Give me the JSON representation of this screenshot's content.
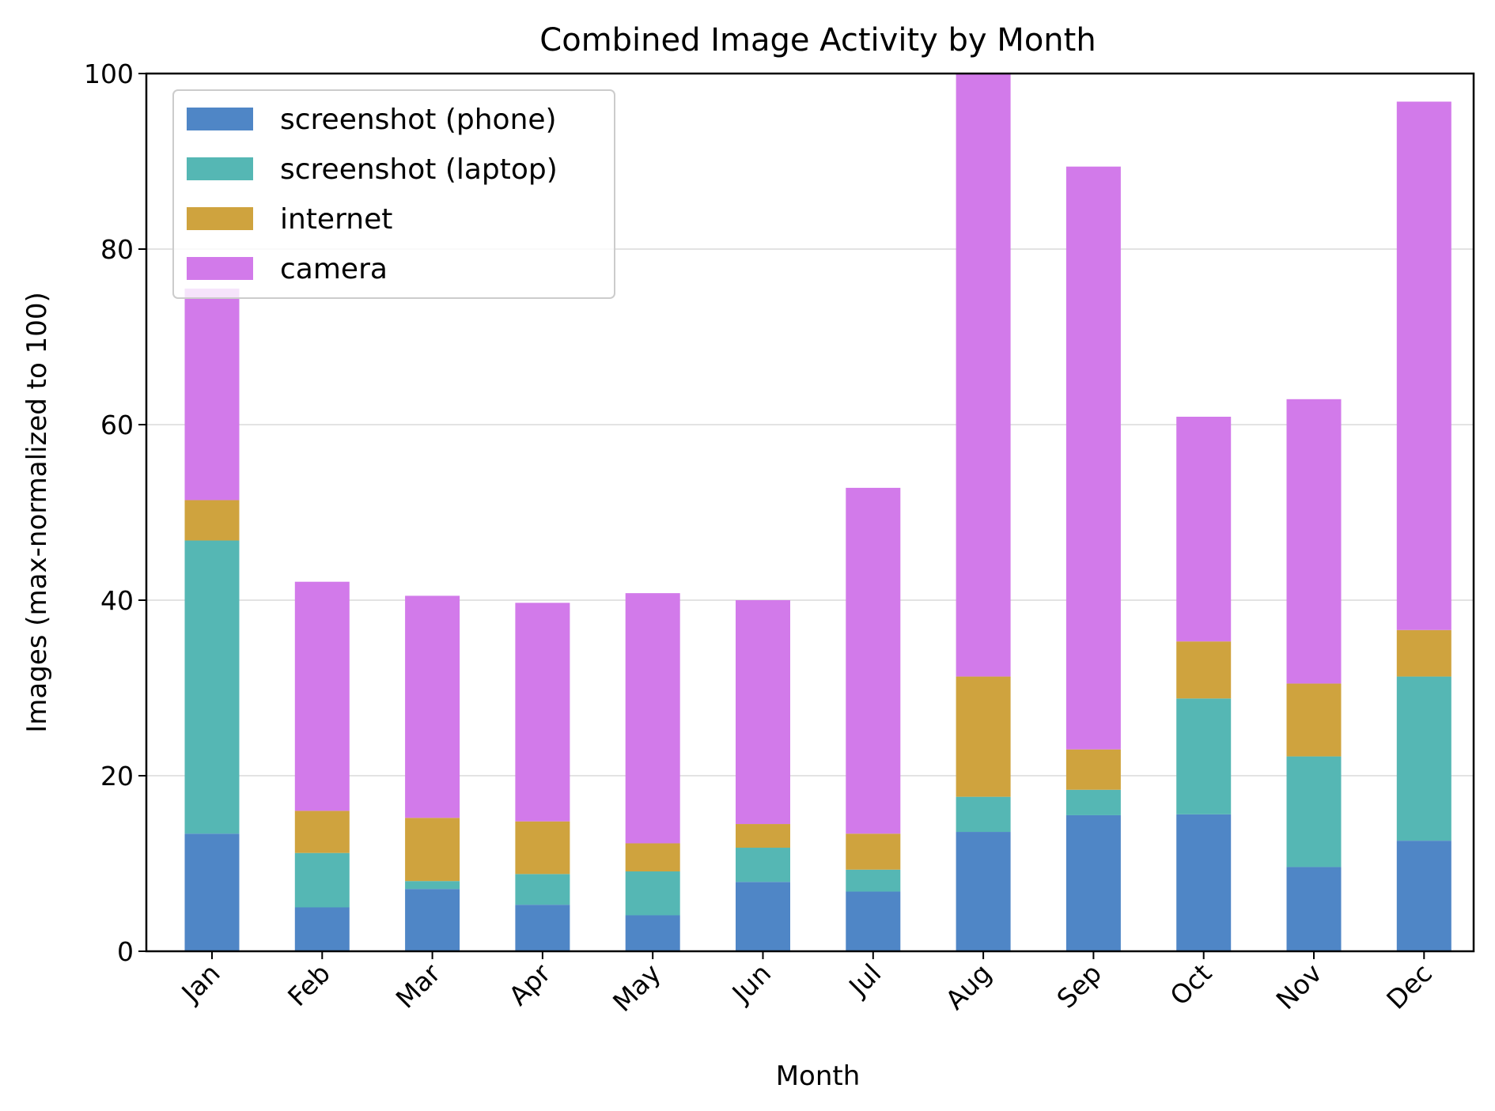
{
  "chart_data": {
    "type": "bar",
    "stacked": true,
    "title": "Combined Image Activity by Month",
    "xlabel": "Month",
    "ylabel": "Images (max-normalized to 100)",
    "ylim": [
      0,
      100
    ],
    "yticks": [
      "0",
      "20",
      "40",
      "60",
      "80",
      "100"
    ],
    "grid": "horizontal",
    "legend_position": "top-left",
    "categories": [
      "Jan",
      "Feb",
      "Mar",
      "Apr",
      "May",
      "Jun",
      "Jul",
      "Aug",
      "Sep",
      "Oct",
      "Nov",
      "Dec"
    ],
    "series": [
      {
        "name": "screenshot (phone)",
        "color": "#4f86c6",
        "values": [
          13.4,
          5.0,
          7.1,
          5.3,
          4.1,
          7.9,
          6.8,
          13.6,
          15.5,
          15.6,
          9.6,
          12.6
        ]
      },
      {
        "name": "screenshot (laptop)",
        "color": "#55b7b4",
        "values": [
          33.4,
          6.2,
          0.9,
          3.5,
          5.0,
          3.9,
          2.5,
          4.0,
          2.9,
          13.2,
          12.6,
          18.7
        ]
      },
      {
        "name": "internet",
        "color": "#cfa33e",
        "values": [
          4.6,
          4.8,
          7.2,
          6.0,
          3.2,
          2.7,
          4.1,
          13.7,
          4.6,
          6.5,
          8.3,
          5.3
        ]
      },
      {
        "name": "camera",
        "color": "#d27aea",
        "values": [
          24.1,
          26.1,
          25.3,
          24.9,
          28.5,
          25.5,
          39.4,
          68.7,
          66.4,
          25.6,
          32.4,
          60.2
        ]
      }
    ]
  }
}
